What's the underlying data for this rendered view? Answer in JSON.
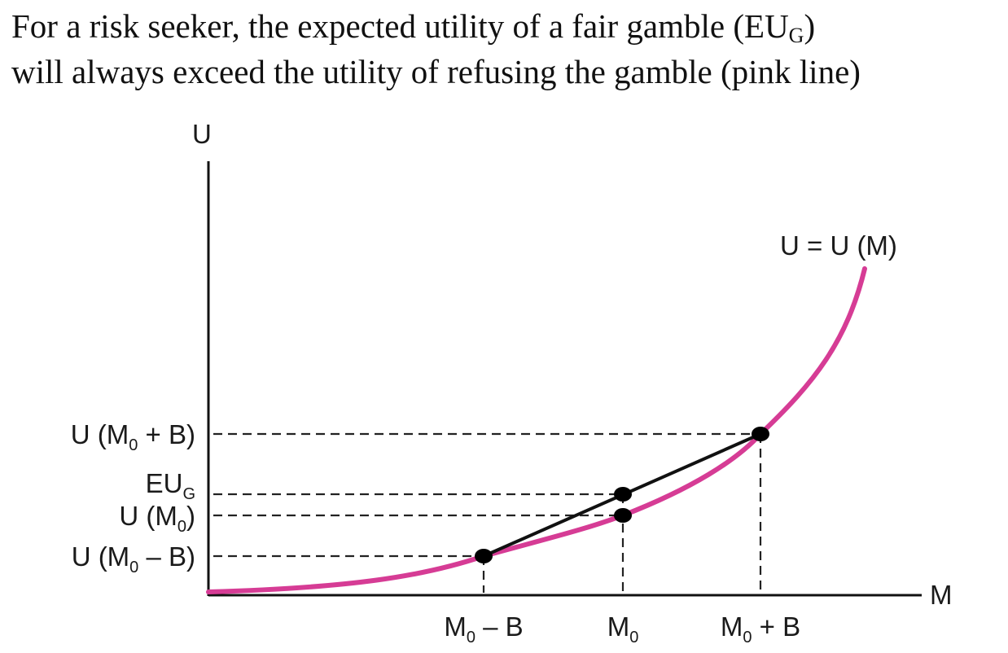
{
  "title": {
    "line1_before": "For a risk seeker, the expected utility of a fair gamble (EU",
    "line1_sub": "G",
    "line1_after": ")",
    "line2": "will always exceed the utility of refusing the gamble (pink line)"
  },
  "axes": {
    "y_label": "U",
    "x_label": "M"
  },
  "curve": {
    "label": "U = U (M)",
    "color": "#d63c95"
  },
  "chord_color": "#111111",
  "y_marks": {
    "u_high_pre": "U (M",
    "u_high_sub": "0",
    "u_high_post": " + B)",
    "eug_main": "EU",
    "eug_sub": "G",
    "u_mid_pre": "U (M",
    "u_mid_sub": "0",
    "u_mid_post": ")",
    "u_low_pre": "U (M",
    "u_low_sub": "0",
    "u_low_post": " – B)"
  },
  "x_marks": {
    "low_pre": "M",
    "low_sub": "0",
    "low_post": " – B",
    "mid_pre": "M",
    "mid_sub": "0",
    "high_pre": "M",
    "high_sub": "0",
    "high_post": " + B"
  }
}
